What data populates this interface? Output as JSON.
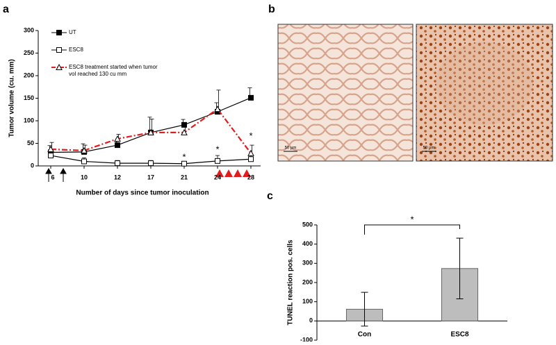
{
  "chart_data": [
    {
      "type": "line",
      "panel": "a",
      "ylabel": "Tumor volume (cu. mm)",
      "xlabel": "Number of days since tumor inoculation",
      "categories": [
        "6",
        "10",
        "12",
        "17",
        "21",
        "24",
        "28"
      ],
      "ylim": [
        0,
        300
      ],
      "yticks": [
        0,
        50,
        100,
        150,
        200,
        250,
        300
      ],
      "series": [
        {
          "name": "UT",
          "color": "#000000",
          "marker": "square-filled",
          "dash": false,
          "values": [
            30,
            31,
            46,
            74,
            91,
            120,
            151
          ],
          "errors": [
            15,
            18,
            8,
            34,
            12,
            20,
            22
          ]
        },
        {
          "name": "ESC8",
          "color": "#000000",
          "marker": "square-open",
          "dash": false,
          "values": [
            23,
            10,
            6,
            6,
            5,
            11,
            15
          ],
          "errors": [
            6,
            8,
            6,
            6,
            4,
            12,
            10
          ]
        },
        {
          "name": "ESC8 treatment started when tumor vol reached 130 cu mm",
          "color": "#e41a1c",
          "marker": "triangle-open",
          "dash": true,
          "values": [
            37,
            34,
            60,
            74,
            74,
            126,
            28
          ],
          "errors": [
            15,
            12,
            10,
            30,
            20,
            42,
            18
          ]
        }
      ],
      "annotations": [
        {
          "text": "*",
          "category": 4,
          "y": 18
        },
        {
          "text": "*",
          "category": 5,
          "y": 35
        },
        {
          "text": "*",
          "category": 6,
          "y": 65
        }
      ]
    },
    {
      "type": "bar",
      "panel": "c",
      "ylabel": "TUNEL reaction pos. cells",
      "categories": [
        "Con",
        "ESC8"
      ],
      "values": [
        61,
        273
      ],
      "errors": [
        88,
        158
      ],
      "color": "#bdbdbd",
      "ylim": [
        -100,
        500
      ],
      "yticks": [
        -100,
        0,
        100,
        200,
        300,
        400,
        500
      ],
      "significance": "*"
    }
  ],
  "images": {
    "panel": "b",
    "scale_bars": [
      "50 µm",
      "50 µm"
    ]
  }
}
